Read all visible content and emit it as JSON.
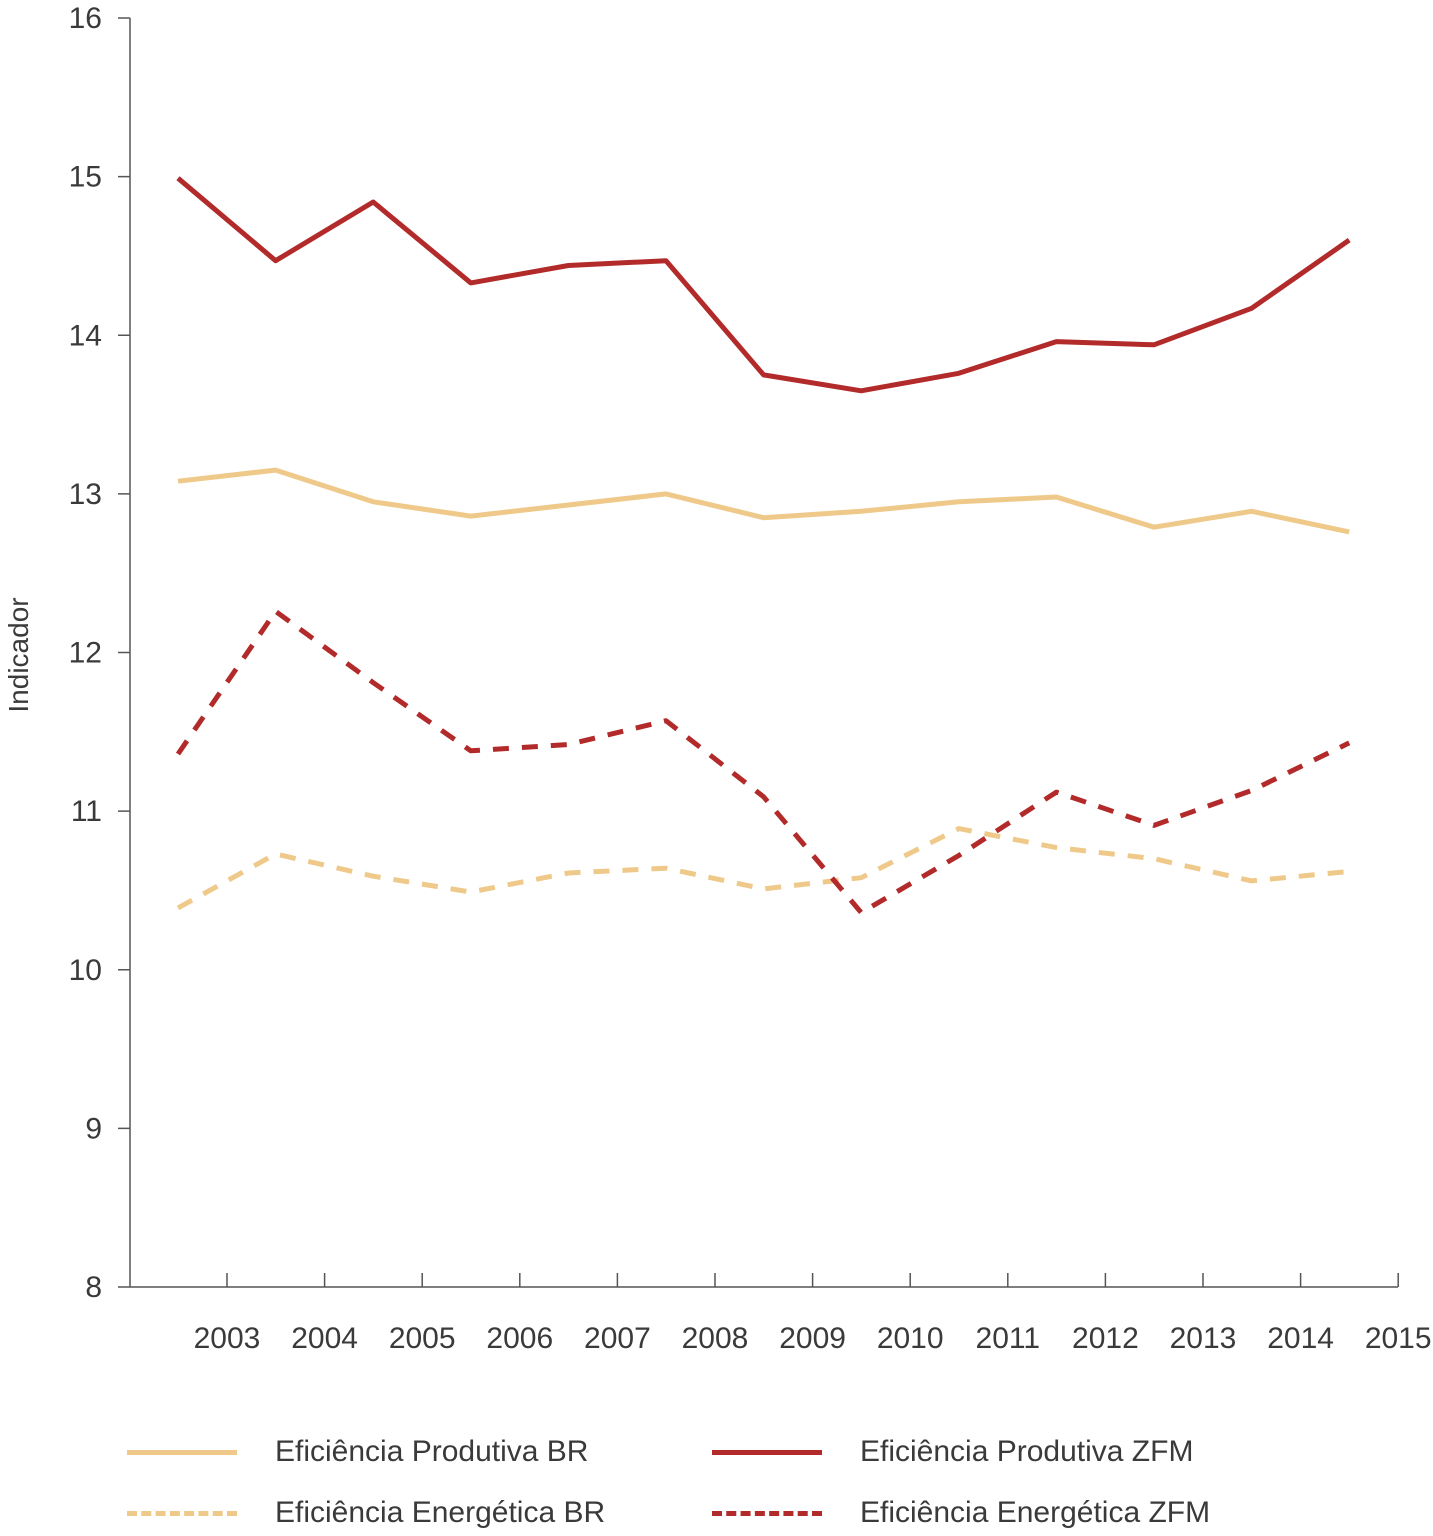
{
  "chart_data": {
    "type": "line",
    "ylabel": "Indicador",
    "xlabel": "",
    "ylim": [
      8,
      16
    ],
    "yticks": [
      8,
      9,
      10,
      11,
      12,
      13,
      14,
      15,
      16
    ],
    "x_tick_labels": [
      "2003",
      "2004",
      "2005",
      "2006",
      "2007",
      "2008",
      "2009",
      "2010",
      "2011",
      "2012",
      "2013",
      "2014",
      "2015"
    ],
    "x": [
      "2003",
      "2004",
      "2005",
      "2006",
      "2007",
      "2008",
      "2009",
      "2010",
      "2011",
      "2012",
      "2013",
      "2014",
      "2015"
    ],
    "series": [
      {
        "name": "Eficiência Produtiva BR",
        "color": "#EFC98A",
        "dash": "solid",
        "values": [
          13.08,
          13.15,
          12.95,
          12.86,
          12.93,
          13.0,
          12.85,
          12.89,
          12.95,
          12.98,
          12.79,
          12.89,
          12.76
        ]
      },
      {
        "name": "Eficiência Produtiva ZFM",
        "color": "#B22A2A",
        "dash": "solid",
        "values": [
          14.99,
          14.47,
          14.84,
          14.33,
          14.44,
          14.47,
          13.75,
          13.65,
          13.76,
          13.96,
          13.94,
          14.17,
          14.6
        ]
      },
      {
        "name": "Eficiência Energética BR",
        "color": "#EFC98A",
        "dash": "dashed",
        "values": [
          10.39,
          10.73,
          10.59,
          10.49,
          10.61,
          10.64,
          10.51,
          10.58,
          10.89,
          10.77,
          10.7,
          10.56,
          10.62
        ]
      },
      {
        "name": "Eficiência Energética ZFM",
        "color": "#B22A2A",
        "dash": "dashed",
        "values": [
          11.36,
          12.26,
          11.81,
          11.38,
          11.42,
          11.57,
          11.09,
          10.36,
          10.72,
          11.12,
          10.91,
          11.13,
          11.43
        ]
      }
    ],
    "grid": false,
    "legend_position": "bottom"
  }
}
